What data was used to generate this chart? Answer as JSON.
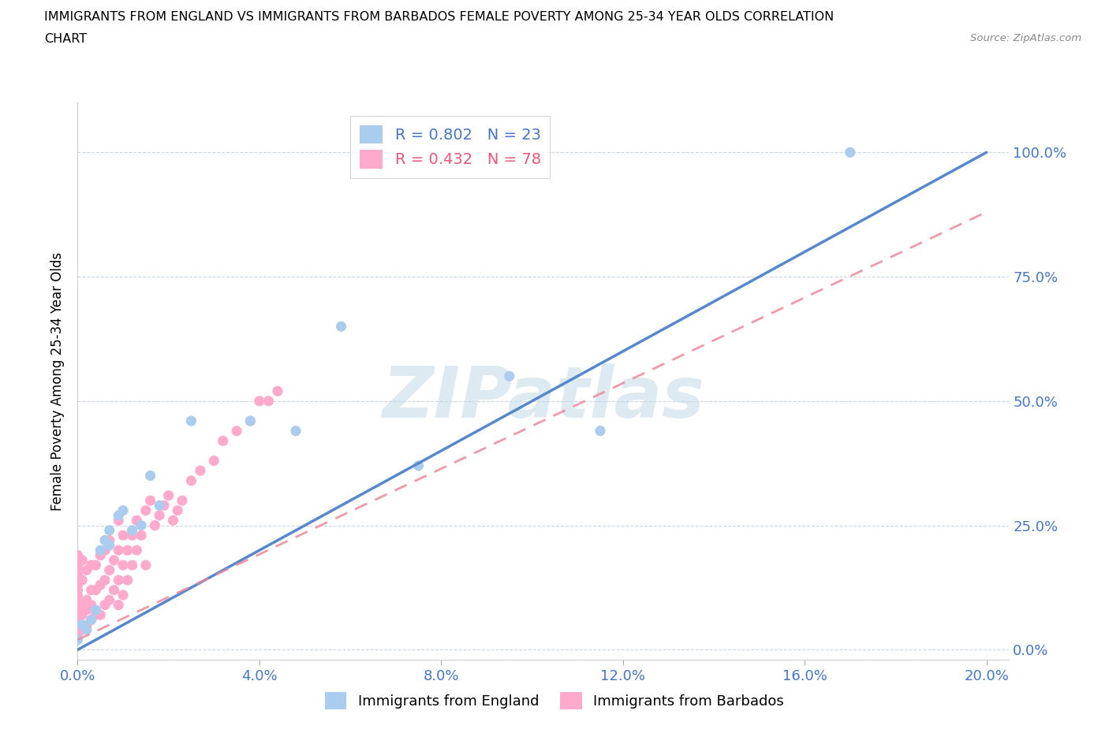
{
  "title_line1": "IMMIGRANTS FROM ENGLAND VS IMMIGRANTS FROM BARBADOS FEMALE POVERTY AMONG 25-34 YEAR OLDS CORRELATION",
  "title_line2": "CHART",
  "source": "Source: ZipAtlas.com",
  "ylabel": "Female Poverty Among 25-34 Year Olds",
  "xlim": [
    0.0,
    0.205
  ],
  "ylim": [
    -0.02,
    1.1
  ],
  "xticks": [
    0.0,
    0.04,
    0.08,
    0.12,
    0.16,
    0.2
  ],
  "yticks": [
    0.0,
    0.25,
    0.5,
    0.75,
    1.0
  ],
  "england_R": 0.802,
  "england_N": 23,
  "barbados_R": 0.432,
  "barbados_N": 78,
  "england_color": "#aaccee",
  "barbados_color": "#ffaacc",
  "england_line_color": "#5588cc",
  "barbados_line_color": "#ee8899",
  "watermark": "ZIPatlas",
  "watermark_color": "#c8dcea",
  "england_line_x0": 0.0,
  "england_line_y0": 0.0,
  "england_line_x1": 0.2,
  "england_line_y1": 1.0,
  "barbados_line_x0": 0.0,
  "barbados_line_y0": 0.02,
  "barbados_line_x1": 0.2,
  "barbados_line_y1": 0.88,
  "england_scatter_x": [
    0.0,
    0.001,
    0.002,
    0.003,
    0.004,
    0.005,
    0.006,
    0.007,
    0.007,
    0.009,
    0.01,
    0.012,
    0.014,
    0.016,
    0.018,
    0.025,
    0.038,
    0.048,
    0.058,
    0.075,
    0.095,
    0.115,
    0.17
  ],
  "england_scatter_y": [
    0.02,
    0.05,
    0.04,
    0.06,
    0.08,
    0.2,
    0.22,
    0.21,
    0.24,
    0.27,
    0.28,
    0.24,
    0.25,
    0.35,
    0.29,
    0.46,
    0.46,
    0.44,
    0.65,
    0.37,
    0.55,
    0.44,
    1.0
  ],
  "barbados_scatter_x": [
    0.0,
    0.0,
    0.0,
    0.0,
    0.0,
    0.0,
    0.0,
    0.0,
    0.0,
    0.0,
    0.0,
    0.0,
    0.0,
    0.0,
    0.0,
    0.0,
    0.0,
    0.0,
    0.001,
    0.001,
    0.001,
    0.001,
    0.001,
    0.002,
    0.002,
    0.002,
    0.002,
    0.003,
    0.003,
    0.003,
    0.003,
    0.004,
    0.004,
    0.004,
    0.005,
    0.005,
    0.005,
    0.006,
    0.006,
    0.006,
    0.007,
    0.007,
    0.007,
    0.008,
    0.008,
    0.009,
    0.009,
    0.009,
    0.009,
    0.01,
    0.01,
    0.01,
    0.011,
    0.011,
    0.012,
    0.012,
    0.013,
    0.013,
    0.014,
    0.015,
    0.015,
    0.016,
    0.017,
    0.018,
    0.019,
    0.02,
    0.021,
    0.022,
    0.023,
    0.025,
    0.027,
    0.03,
    0.032,
    0.035,
    0.038,
    0.04,
    0.042,
    0.044
  ],
  "barbados_scatter_y": [
    0.02,
    0.03,
    0.04,
    0.05,
    0.06,
    0.07,
    0.08,
    0.09,
    0.1,
    0.11,
    0.12,
    0.13,
    0.14,
    0.15,
    0.16,
    0.17,
    0.18,
    0.19,
    0.04,
    0.07,
    0.09,
    0.14,
    0.18,
    0.05,
    0.08,
    0.1,
    0.16,
    0.06,
    0.09,
    0.12,
    0.17,
    0.07,
    0.12,
    0.17,
    0.07,
    0.13,
    0.19,
    0.09,
    0.14,
    0.2,
    0.1,
    0.16,
    0.22,
    0.12,
    0.18,
    0.09,
    0.14,
    0.2,
    0.26,
    0.11,
    0.17,
    0.23,
    0.14,
    0.2,
    0.17,
    0.23,
    0.2,
    0.26,
    0.23,
    0.17,
    0.28,
    0.3,
    0.25,
    0.27,
    0.29,
    0.31,
    0.26,
    0.28,
    0.3,
    0.34,
    0.36,
    0.38,
    0.42,
    0.44,
    0.46,
    0.5,
    0.5,
    0.52
  ]
}
